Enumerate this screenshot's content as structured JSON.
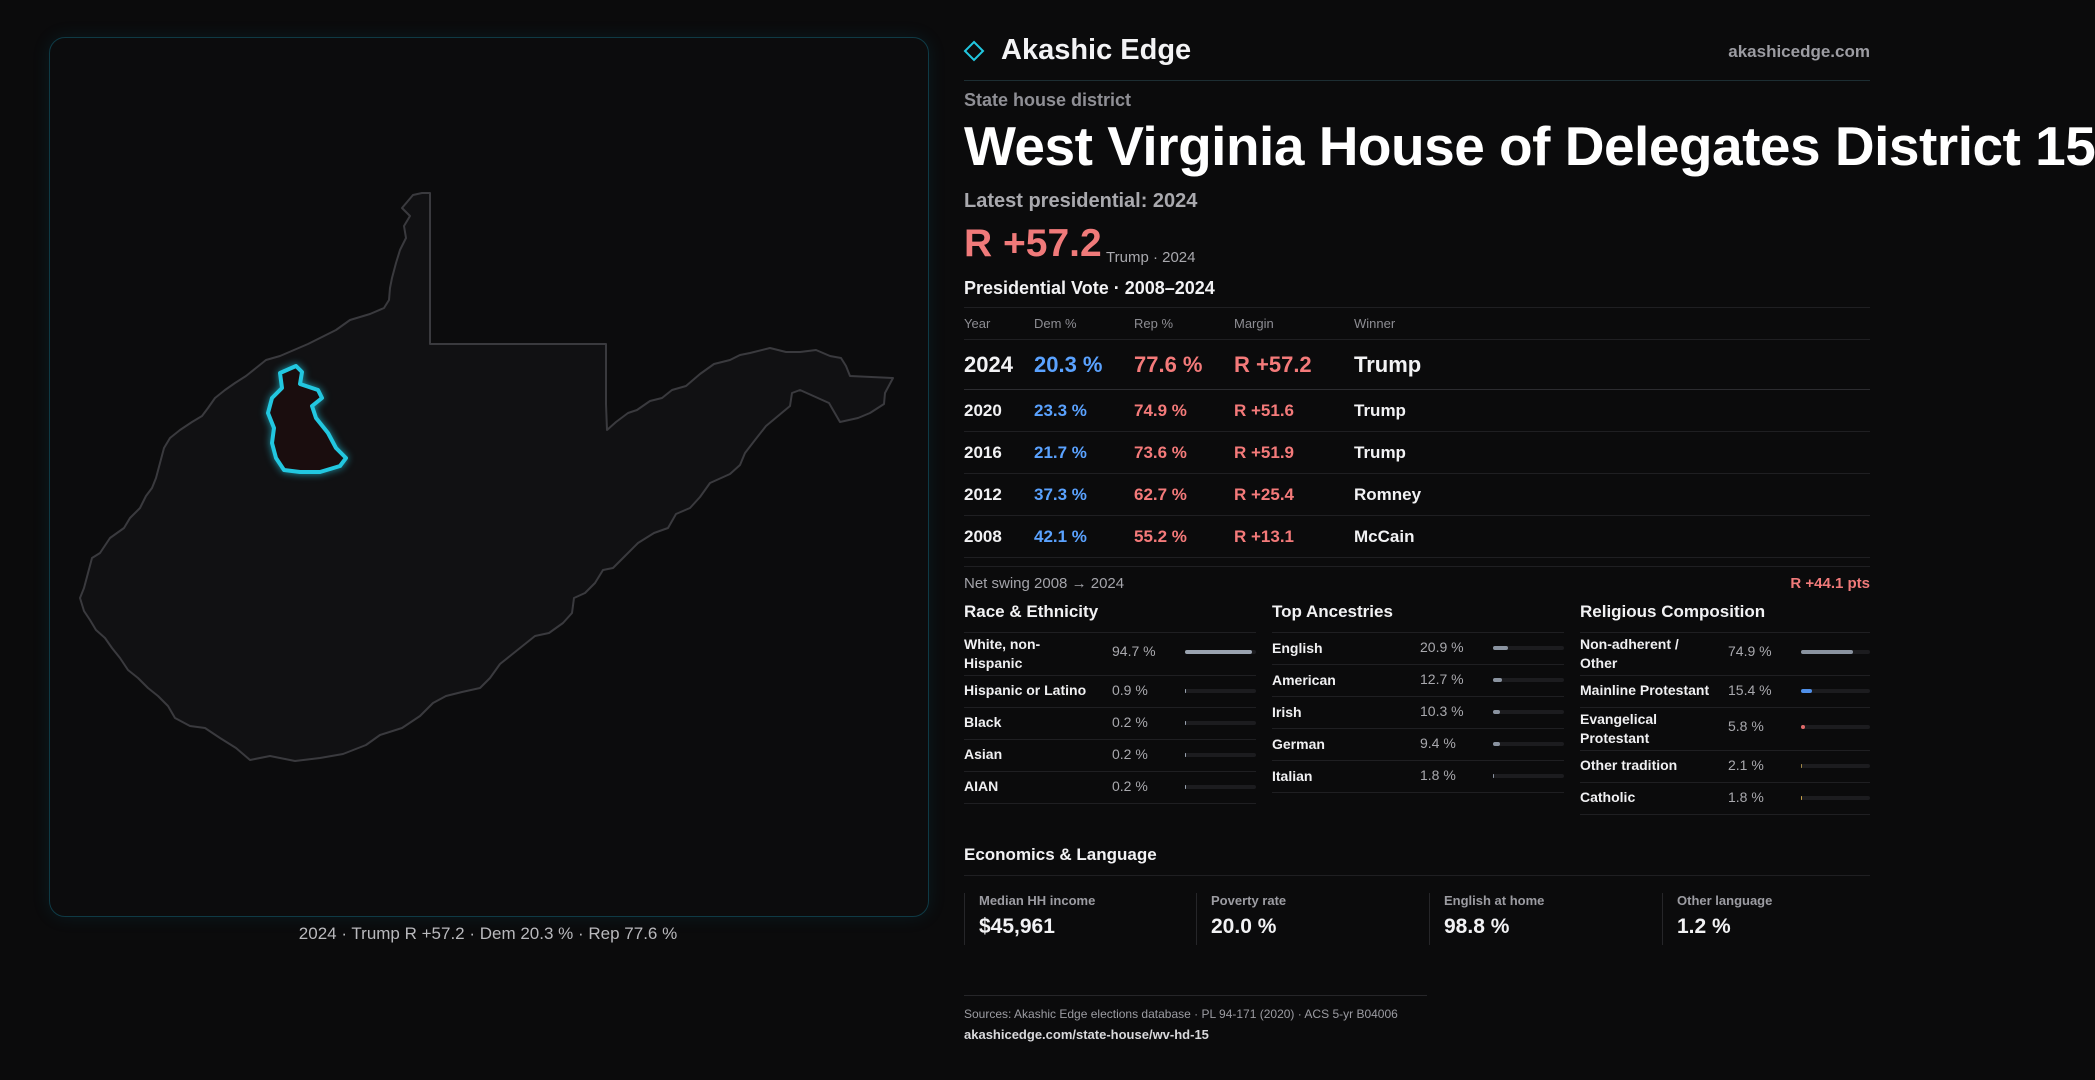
{
  "brand": {
    "name": "Akashic Edge",
    "url": "akashicedge.com"
  },
  "district": {
    "kicker": "State house district",
    "title": "West Virginia House of Delegates District 15",
    "latest_label": "Latest presidential: 2024",
    "latest_margin": "R +57.2",
    "latest_sub": "Trump · 2024"
  },
  "presidential": {
    "title": "Presidential Vote · 2008–2024",
    "headers": {
      "year": "Year",
      "dem": "Dem %",
      "rep": "Rep %",
      "margin": "Margin",
      "winner": "Winner"
    },
    "rows": [
      {
        "year": "2024",
        "dem": "20.3 %",
        "rep": "77.6 %",
        "margin": "R +57.2",
        "winner": "Trump"
      },
      {
        "year": "2020",
        "dem": "23.3 %",
        "rep": "74.9 %",
        "margin": "R +51.6",
        "winner": "Trump"
      },
      {
        "year": "2016",
        "dem": "21.7 %",
        "rep": "73.6 %",
        "margin": "R +51.9",
        "winner": "Trump"
      },
      {
        "year": "2012",
        "dem": "37.3 %",
        "rep": "62.7 %",
        "margin": "R +25.4",
        "winner": "Romney"
      },
      {
        "year": "2008",
        "dem": "42.1 %",
        "rep": "55.2 %",
        "margin": "R +13.1",
        "winner": "McCain"
      }
    ],
    "swing_label": "Net swing 2008 → 2024",
    "swing_value": "R +44.1 pts"
  },
  "race": {
    "title": "Race & Ethnicity",
    "items": [
      {
        "label": "White, non-Hispanic",
        "pct": "94.7 %",
        "value": 94.7
      },
      {
        "label": "Hispanic or Latino",
        "pct": "0.9 %",
        "value": 0.9
      },
      {
        "label": "Black",
        "pct": "0.2 %",
        "value": 0.2
      },
      {
        "label": "Asian",
        "pct": "0.2 %",
        "value": 0.2
      },
      {
        "label": "AIAN",
        "pct": "0.2 %",
        "value": 0.2
      }
    ]
  },
  "ancestry": {
    "title": "Top Ancestries",
    "items": [
      {
        "label": "English",
        "pct": "20.9 %",
        "value": 20.9
      },
      {
        "label": "American",
        "pct": "12.7 %",
        "value": 12.7
      },
      {
        "label": "Irish",
        "pct": "10.3 %",
        "value": 10.3
      },
      {
        "label": "German",
        "pct": "9.4 %",
        "value": 9.4
      },
      {
        "label": "Italian",
        "pct": "1.8 %",
        "value": 1.8
      }
    ]
  },
  "religion": {
    "title": "Religious Composition",
    "items": [
      {
        "label": "Non-adherent / Other",
        "pct": "74.9 %",
        "value": 74.9
      },
      {
        "label": "Mainline Protestant",
        "pct": "15.4 %",
        "value": 15.4
      },
      {
        "label": "Evangelical Protestant",
        "pct": "5.8 %",
        "value": 5.8
      },
      {
        "label": "Other tradition",
        "pct": "2.1 %",
        "value": 2.1
      },
      {
        "label": "Catholic",
        "pct": "1.8 %",
        "value": 1.8
      }
    ]
  },
  "economics": {
    "title": "Economics & Language",
    "items": [
      {
        "label": "Median HH income",
        "value": "$45,961"
      },
      {
        "label": "Poverty rate",
        "value": "20.0 %"
      },
      {
        "label": "English at home",
        "value": "98.8 %"
      },
      {
        "label": "Other language",
        "value": "1.2 %"
      }
    ]
  },
  "map": {
    "caption": "2024 · Trump R +57.2 · Dem 20.3 % · Rep 77.6 %"
  },
  "sources": {
    "text": "Sources: Akashic Edge elections database · PL 94-171 (2020) · ACS 5-yr B04006",
    "url": "akashicedge.com/state-house/wv-hd-15"
  },
  "colors": {
    "accent": "#22c7e0",
    "dem": "#5aa2ff",
    "rep": "#f47a7a",
    "race_bar": "#9aa3b0",
    "ancestry_bar": "#8a93a0",
    "religion_bars": [
      "#8a93a0",
      "#4f8fe8",
      "#e06a6a",
      "#a38a4a",
      "#c8a24a"
    ]
  }
}
